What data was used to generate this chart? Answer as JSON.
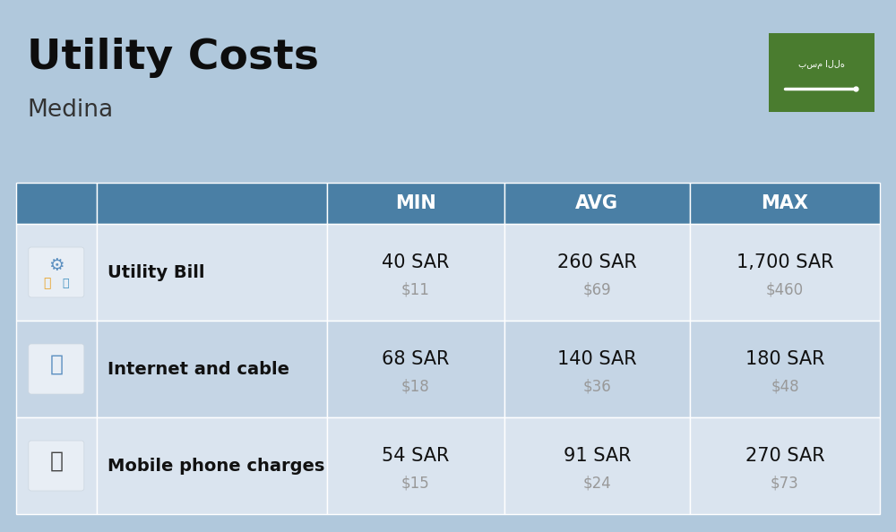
{
  "title": "Utility Costs",
  "subtitle": "Medina",
  "background_color": "#b0c8dc",
  "header_color": "#4a7fa5",
  "header_text_color": "#ffffff",
  "row_colors": [
    "#dae4ef",
    "#c5d5e5",
    "#dae4ef"
  ],
  "cell_text_color": "#111111",
  "usd_text_color": "#999999",
  "flag_green": "#4a7c2f",
  "rows": [
    {
      "label": "Utility Bill",
      "min_sar": "40 SAR",
      "min_usd": "$11",
      "avg_sar": "260 SAR",
      "avg_usd": "$69",
      "max_sar": "1,700 SAR",
      "max_usd": "$460"
    },
    {
      "label": "Internet and cable",
      "min_sar": "68 SAR",
      "min_usd": "$18",
      "avg_sar": "140 SAR",
      "avg_usd": "$36",
      "max_sar": "180 SAR",
      "max_usd": "$48"
    },
    {
      "label": "Mobile phone charges",
      "min_sar": "54 SAR",
      "min_usd": "$15",
      "avg_sar": "91 SAR",
      "avg_usd": "$24",
      "max_sar": "270 SAR",
      "max_usd": "$73"
    }
  ],
  "fig_width": 10.0,
  "fig_height": 5.94,
  "dpi": 100
}
